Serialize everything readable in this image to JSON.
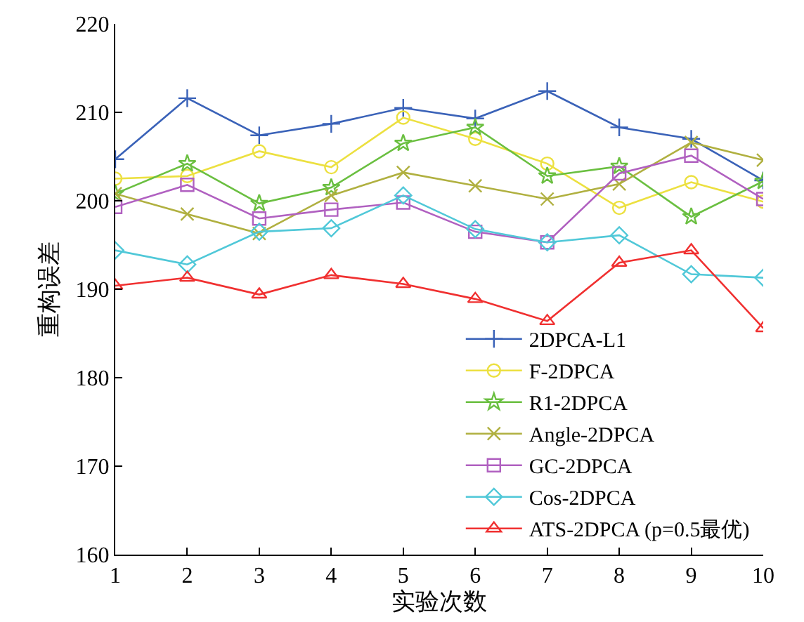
{
  "chart_data": {
    "type": "line",
    "xlabel": "实验次数",
    "ylabel": "重构误差",
    "x": [
      1,
      2,
      3,
      4,
      5,
      6,
      7,
      8,
      9,
      10
    ],
    "xlim": [
      1,
      10
    ],
    "xticks": [
      1,
      2,
      3,
      4,
      5,
      6,
      7,
      8,
      9,
      10
    ],
    "ylim": [
      160,
      220
    ],
    "yticks": [
      160,
      170,
      180,
      190,
      200,
      210,
      220
    ],
    "grid": false,
    "legend": "bottom right",
    "line_style": "solid",
    "series": [
      {
        "name": "2DPCA-L1",
        "color": "#3a62b8",
        "marker": "cross",
        "values": [
          204.7,
          211.6,
          207.4,
          208.7,
          210.5,
          209.3,
          212.4,
          208.3,
          207.0,
          202.3
        ]
      },
      {
        "name": "F-2DPCA",
        "color": "#ece040",
        "marker": "circle",
        "values": [
          202.5,
          202.8,
          205.6,
          203.8,
          209.4,
          207.0,
          204.2,
          199.2,
          202.1,
          199.9
        ]
      },
      {
        "name": "R1-2DPCA",
        "color": "#6abf40",
        "marker": "star",
        "values": [
          200.8,
          204.2,
          199.7,
          201.5,
          206.5,
          208.3,
          202.8,
          203.9,
          198.2,
          202.2
        ]
      },
      {
        "name": "Angle-2DPCA",
        "color": "#b0b040",
        "marker": "x",
        "values": [
          200.8,
          198.5,
          196.3,
          200.6,
          203.2,
          201.7,
          200.2,
          201.9,
          206.6,
          204.6
        ]
      },
      {
        "name": "GC-2DPCA",
        "color": "#b060c0",
        "marker": "square",
        "values": [
          199.3,
          201.8,
          198.0,
          199.0,
          199.8,
          196.5,
          195.3,
          203.1,
          205.1,
          200.2
        ]
      },
      {
        "name": "Cos-2DPCA",
        "color": "#50c8d8",
        "marker": "diamond",
        "values": [
          194.4,
          192.8,
          196.5,
          196.9,
          200.6,
          196.8,
          195.3,
          196.1,
          191.7,
          191.3
        ]
      },
      {
        "name": "ATS-2DPCA (p=0.5最优)",
        "color": "#f03030",
        "marker": "triangle",
        "values": [
          190.4,
          191.3,
          189.4,
          191.6,
          190.6,
          188.9,
          186.4,
          193.0,
          194.4,
          185.6
        ]
      }
    ]
  }
}
